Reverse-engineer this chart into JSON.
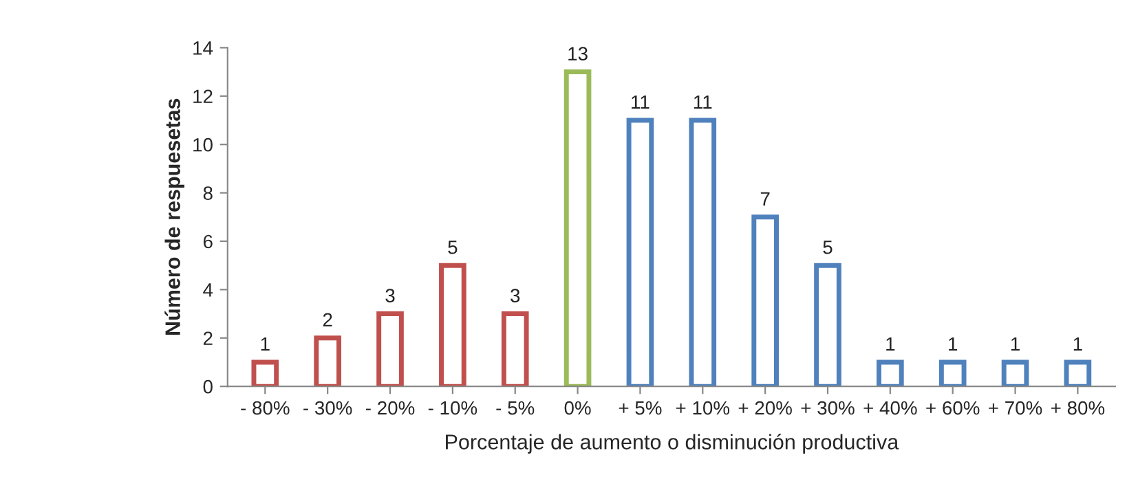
{
  "chart_data": {
    "type": "bar",
    "categories": [
      "- 80%",
      "- 30%",
      "- 20%",
      "- 10%",
      "- 5%",
      "0%",
      "+ 5%",
      "+ 10%",
      "+ 20%",
      "+ 30%",
      "+ 40%",
      "+ 60%",
      "+ 70%",
      "+ 80%"
    ],
    "values": [
      1,
      2,
      3,
      5,
      3,
      13,
      11,
      11,
      7,
      5,
      1,
      1,
      1,
      1
    ],
    "colors": [
      "#c0504d",
      "#c0504d",
      "#c0504d",
      "#c0504d",
      "#c0504d",
      "#9bbb59",
      "#4f81bd",
      "#4f81bd",
      "#4f81bd",
      "#4f81bd",
      "#4f81bd",
      "#4f81bd",
      "#4f81bd",
      "#4f81bd"
    ],
    "data_labels": true,
    "xlabel": "Porcentaje de aumento o disminución productiva",
    "ylabel": "Número de respuesetas",
    "ylim": [
      0,
      14
    ],
    "yticks": [
      0,
      2,
      4,
      6,
      8,
      10,
      12,
      14
    ],
    "grid": false,
    "legend": false
  }
}
